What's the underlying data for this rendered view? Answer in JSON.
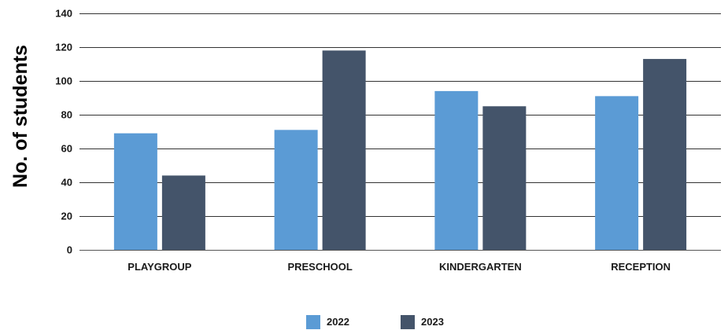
{
  "chart_data": {
    "type": "bar",
    "title": "",
    "xlabel": "",
    "ylabel": "No. of students",
    "categories": [
      "PLAYGROUP",
      "PRESCHOOL",
      "KINDERGARTEN",
      "RECEPTION"
    ],
    "series": [
      {
        "name": "2022",
        "values": [
          69,
          71,
          94,
          91
        ],
        "color": "#5b9bd5"
      },
      {
        "name": "2023",
        "values": [
          44,
          118,
          85,
          113
        ],
        "color": "#44546a"
      }
    ],
    "ylim": [
      0,
      140
    ],
    "yticks": [
      0,
      20,
      40,
      60,
      80,
      100,
      120,
      140
    ],
    "grid": true,
    "legend_position": "bottom"
  }
}
